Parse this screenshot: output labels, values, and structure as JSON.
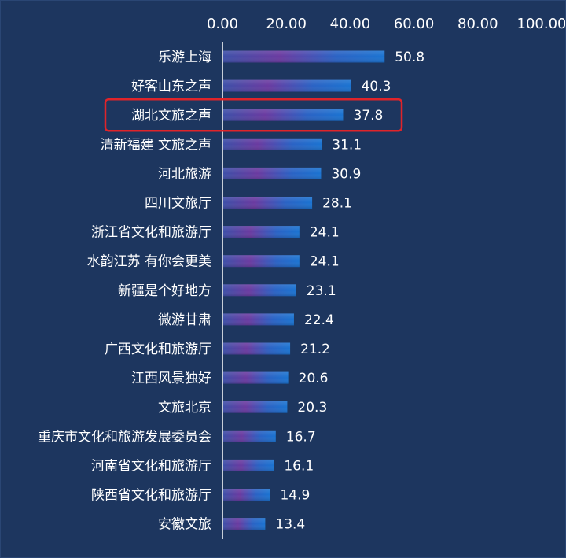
{
  "chart_data": {
    "type": "bar",
    "orientation": "horizontal",
    "categories": [
      "乐游上海",
      "好客山东之声",
      "湖北文旅之声",
      "清新福建 文旅之声",
      "河北旅游",
      "四川文旅厅",
      "浙江省文化和旅游厅",
      "水韵江苏 有你会更美",
      "新疆是个好地方",
      "微游甘肃",
      "广西文化和旅游厅",
      "江西风景独好",
      "文旅北京",
      "重庆市文化和旅游发展委员会",
      "河南省文化和旅游厅",
      "陕西省文化和旅游厅",
      "安徽文旅"
    ],
    "values": [
      50.8,
      40.3,
      37.8,
      31.1,
      30.9,
      28.1,
      24.1,
      24.1,
      23.1,
      22.4,
      21.2,
      20.6,
      20.3,
      16.7,
      16.1,
      14.9,
      13.4
    ],
    "value_labels": [
      "50.8",
      "40.3",
      "37.8",
      "31.1",
      "30.9",
      "28.1",
      "24.1",
      "24.1",
      "23.1",
      "22.4",
      "21.2",
      "20.6",
      "20.3",
      "16.7",
      "16.1",
      "14.9",
      "13.4"
    ],
    "xlim": [
      0,
      100
    ],
    "x_ticks": [
      "0.00",
      "20.00",
      "40.00",
      "60.00",
      "80.00",
      "100.00"
    ],
    "x_axis_position": "top",
    "grid": false,
    "legend": "none",
    "highlighted_category": "湖北文旅之声",
    "colors": {
      "background": "#1d365f",
      "bar_main": "#1a73d1",
      "bar_accent": "#6a3aa0",
      "text": "#ffffff",
      "axis": "#ffffff",
      "highlight_box": "#e0242a"
    }
  }
}
